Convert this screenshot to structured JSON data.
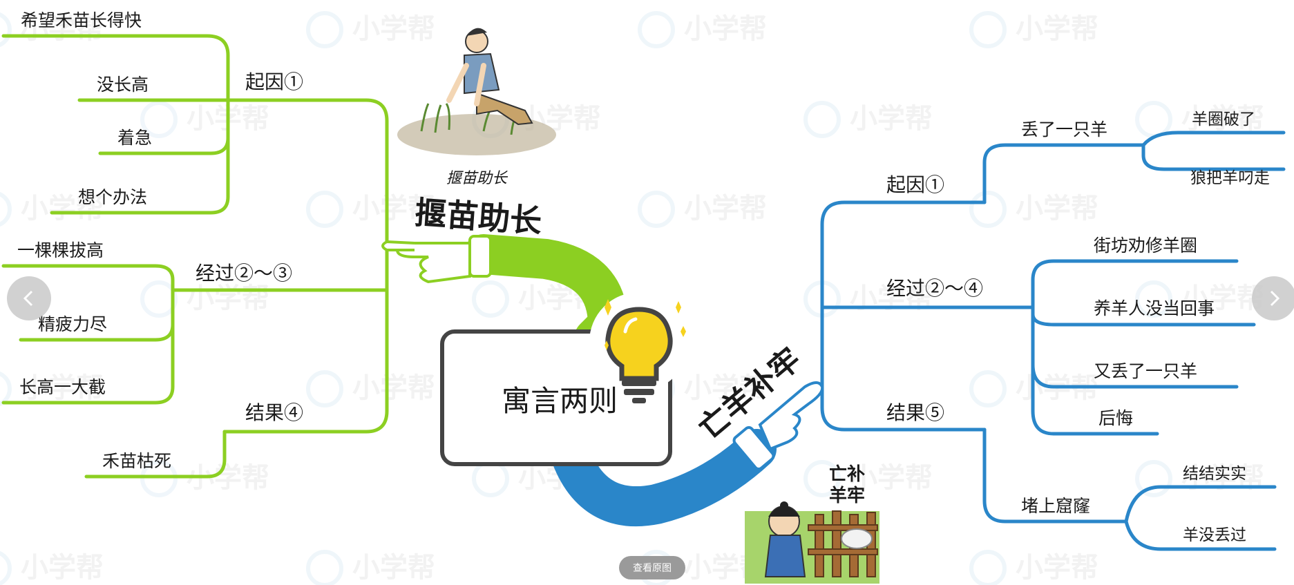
{
  "colors": {
    "green": "#8ccf22",
    "blue": "#2a86c9",
    "box_border": "#444444"
  },
  "center": {
    "title": "寓言两则"
  },
  "watermark": {
    "text": "小学帮"
  },
  "left_story": {
    "title": "揠苗助长",
    "caption": "揠苗助长",
    "branches": [
      {
        "label": "起因①",
        "leaves": [
          "希望禾苗长得快",
          "没长高",
          "着急",
          "想个办法"
        ]
      },
      {
        "label": "经过②～③",
        "leaves": [
          "一棵棵拔高",
          "精疲力尽",
          "长高一大截"
        ]
      },
      {
        "label": "结果④",
        "leaves": [
          "禾苗枯死"
        ]
      }
    ]
  },
  "right_story": {
    "title": "亡羊补牢",
    "caption_line1": "亡补",
    "caption_line2": "羊牢",
    "branches": [
      {
        "label": "起因①",
        "sub": {
          "label": "丢了一只羊",
          "leaves": [
            "羊圈破了",
            "狼把羊叼走"
          ]
        }
      },
      {
        "label": "经过②～④",
        "leaves": [
          "街坊劝修羊圈",
          "养羊人没当回事",
          "又丢了一只羊",
          "后悔"
        ]
      },
      {
        "label": "结果⑤",
        "sub": {
          "label": "堵上窟窿",
          "leaves": [
            "结结实实",
            "羊没丢过"
          ]
        }
      }
    ]
  },
  "controls": {
    "view_original": "查看原图"
  },
  "icons": {
    "prev": "chevron-left-icon",
    "next": "chevron-right-icon",
    "bulb": "light-bulb-icon"
  }
}
